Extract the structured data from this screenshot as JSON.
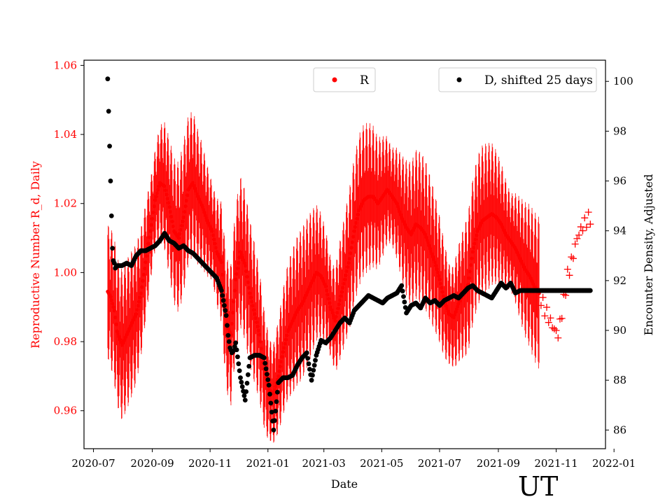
{
  "chart_data": {
    "type": "scatter",
    "xlabel": "Date",
    "ylabel_left": "Reproductive Number R_d, Daily",
    "ylabel_right": "Encounter Density, Adjusted",
    "watermark": "UT",
    "x_range_days": [
      -10,
      540
    ],
    "x_ticks": [
      {
        "label": "2020-07",
        "day": 0
      },
      {
        "label": "2020-09",
        "day": 62
      },
      {
        "label": "2020-11",
        "day": 123
      },
      {
        "label": "2021-01",
        "day": 184
      },
      {
        "label": "2021-03",
        "day": 243
      },
      {
        "label": "2021-05",
        "day": 304
      },
      {
        "label": "2021-07",
        "day": 365
      },
      {
        "label": "2021-09",
        "day": 427
      },
      {
        "label": "2021-11",
        "day": 488
      },
      {
        "label": "2022-01",
        "day": 549
      }
    ],
    "left_axis": {
      "ylim": [
        0.949,
        1.0615
      ],
      "ticks": [
        0.96,
        0.98,
        1.0,
        1.02,
        1.04,
        1.06
      ],
      "tick_labels": [
        "0.96",
        "0.98",
        "1.00",
        "1.02",
        "1.04",
        "1.06"
      ],
      "color": "#ff0000"
    },
    "right_axis": {
      "ylim": [
        85.25,
        100.85
      ],
      "ticks": [
        86,
        88,
        90,
        92,
        94,
        96,
        98,
        100
      ],
      "tick_labels": [
        "86",
        "88",
        "90",
        "92",
        "94",
        "96",
        "98",
        "100"
      ],
      "color": "#000000"
    },
    "legend": [
      {
        "label": "R",
        "color": "#ff0000",
        "placement": "top-center"
      },
      {
        "label": "D, shifted 25 days",
        "color": "#000000",
        "placement": "top-right"
      }
    ],
    "series": [
      {
        "name": "R",
        "color": "#ff0000",
        "marker": "dot with error bars (range shown as vertical bars), '+' markers at end",
        "x_days": [
          15,
          18,
          22,
          25,
          30,
          35,
          40,
          45,
          50,
          55,
          60,
          65,
          70,
          75,
          80,
          85,
          90,
          95,
          100,
          105,
          110,
          115,
          120,
          125,
          130,
          135,
          140,
          145,
          150,
          155,
          160,
          165,
          170,
          175,
          180,
          185,
          190,
          195,
          200,
          205,
          210,
          215,
          220,
          225,
          230,
          235,
          240,
          245,
          250,
          255,
          260,
          265,
          270,
          275,
          280,
          285,
          290,
          295,
          300,
          305,
          310,
          315,
          320,
          325,
          330,
          335,
          340,
          345,
          350,
          355,
          360,
          365,
          370,
          375,
          380,
          385,
          390,
          395,
          400,
          405,
          410,
          415,
          420,
          425,
          430,
          435,
          440,
          445,
          450,
          455,
          460,
          465,
          470,
          475,
          480,
          485,
          490,
          495,
          500,
          505,
          510,
          515,
          520,
          524
        ],
        "values": [
          0.9945,
          0.993,
          0.989,
          0.983,
          0.979,
          0.982,
          0.985,
          0.988,
          0.994,
          1.003,
          1.012,
          1.021,
          1.026,
          1.025,
          1.019,
          1.012,
          1.01,
          1.016,
          1.024,
          1.026,
          1.022,
          1.019,
          1.015,
          1.012,
          1.006,
          1.003,
          0.985,
          0.982,
          0.998,
          1.006,
          1.002,
          0.994,
          0.988,
          0.982,
          0.972,
          0.966,
          0.965,
          0.97,
          0.977,
          0.983,
          0.986,
          0.989,
          0.991,
          0.994,
          0.997,
          1.0,
          0.999,
          0.996,
          0.99,
          0.986,
          0.992,
          0.998,
          1.004,
          1.012,
          1.018,
          1.021,
          1.022,
          1.022,
          1.02,
          1.022,
          1.024,
          1.022,
          1.02,
          1.016,
          1.013,
          1.011,
          1.014,
          1.013,
          1.011,
          1.007,
          1.003,
          0.998,
          0.992,
          0.988,
          0.987,
          0.991,
          0.994,
          0.9965,
          1.006,
          1.012,
          1.015,
          1.016,
          1.017,
          1.016,
          1.014,
          1.011,
          1.009,
          1.007,
          1.004,
          1.001,
          0.999,
          0.996,
          0.994,
          0.99,
          0.987,
          0.984,
          0.982,
          0.99,
          0.999,
          1.004,
          1.01,
          1.013,
          1.015,
          1.016
        ]
      },
      {
        "name": "D, shifted 25 days",
        "color": "#000000",
        "marker": "dot",
        "x_days": [
          15,
          16,
          17,
          18,
          19,
          20,
          21,
          22,
          23,
          25,
          30,
          35,
          40,
          45,
          50,
          55,
          60,
          65,
          70,
          75,
          80,
          85,
          90,
          95,
          100,
          105,
          110,
          115,
          120,
          125,
          130,
          135,
          140,
          142,
          144,
          146,
          148,
          150,
          155,
          160,
          165,
          170,
          175,
          180,
          185,
          190,
          195,
          200,
          205,
          210,
          215,
          220,
          225,
          230,
          235,
          240,
          245,
          250,
          255,
          260,
          265,
          270,
          275,
          280,
          285,
          290,
          295,
          300,
          305,
          310,
          315,
          320,
          325,
          330,
          335,
          340,
          345,
          350,
          355,
          360,
          365,
          370,
          375,
          380,
          385,
          390,
          395,
          400,
          405,
          410,
          415,
          420,
          425,
          430,
          435,
          440,
          445,
          450,
          455,
          460,
          465,
          470,
          475,
          480,
          485,
          490,
          495,
          500,
          505,
          510,
          515,
          520,
          524
        ],
        "values": [
          100.1,
          98.8,
          97.4,
          96.0,
          94.6,
          93.3,
          92.8,
          92.7,
          92.5,
          92.6,
          92.6,
          92.7,
          92.6,
          93.0,
          93.2,
          93.2,
          93.3,
          93.4,
          93.6,
          93.9,
          93.6,
          93.5,
          93.3,
          93.4,
          93.2,
          93.1,
          92.9,
          92.7,
          92.5,
          92.3,
          92.1,
          91.6,
          90.6,
          89.8,
          89.3,
          89.1,
          89.2,
          89.5,
          88.1,
          87.2,
          88.9,
          89.0,
          89.0,
          88.9,
          87.8,
          86.0,
          87.9,
          88.1,
          88.1,
          88.2,
          88.6,
          88.9,
          89.1,
          88.0,
          89.0,
          89.6,
          89.5,
          89.7,
          90.0,
          90.3,
          90.5,
          90.3,
          90.8,
          91.0,
          91.2,
          91.4,
          91.3,
          91.2,
          91.1,
          91.3,
          91.4,
          91.5,
          91.8,
          90.7,
          91.0,
          91.1,
          90.9,
          91.3,
          91.1,
          91.2,
          91.0,
          91.2,
          91.3,
          91.4,
          91.3,
          91.5,
          91.7,
          91.8,
          91.6,
          91.5,
          91.4,
          91.3,
          91.6,
          91.9,
          91.7,
          91.9,
          91.5,
          91.6,
          91.6,
          91.6,
          91.6,
          91.6,
          91.6,
          91.6,
          91.6,
          91.6,
          91.6,
          91.6,
          91.6,
          91.6,
          91.6,
          91.6,
          91.6
        ]
      }
    ]
  }
}
